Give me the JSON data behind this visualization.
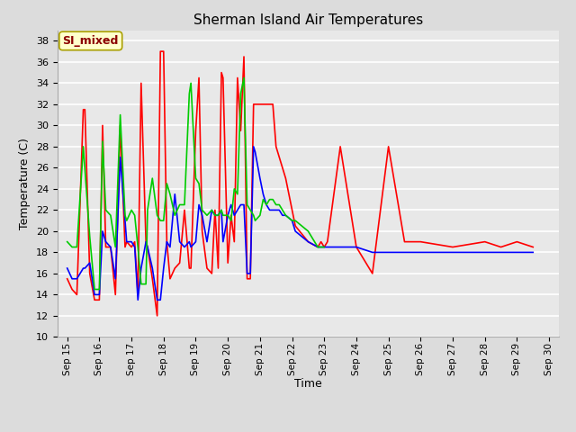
{
  "title": "Sherman Island Air Temperatures",
  "xlabel": "Time",
  "ylabel": "Temperature (C)",
  "background_color": "#dcdcdc",
  "plot_bg_color": "#dcdcdc",
  "plot_area_color": "#e8e8e8",
  "ylim": [
    10,
    39
  ],
  "yticks": [
    10,
    12,
    14,
    16,
    18,
    20,
    22,
    24,
    26,
    28,
    30,
    32,
    34,
    36,
    38
  ],
  "annotation_text": "SI_mixed",
  "annotation_color": "#8b0000",
  "annotation_bg": "#ffffcc",
  "annotation_edge": "#aaa000",
  "series": {
    "Panel T": {
      "color": "#ff0000",
      "x": [
        0.0,
        0.15,
        0.3,
        0.5,
        0.55,
        0.7,
        0.85,
        1.0,
        1.1,
        1.2,
        1.35,
        1.5,
        1.65,
        1.8,
        1.85,
        2.0,
        2.1,
        2.2,
        2.3,
        2.45,
        2.5,
        2.65,
        2.8,
        2.9,
        3.0,
        3.1,
        3.2,
        3.35,
        3.5,
        3.65,
        3.8,
        3.85,
        4.0,
        4.1,
        4.2,
        4.35,
        4.5,
        4.6,
        4.7,
        4.8,
        4.85,
        5.0,
        5.1,
        5.2,
        5.3,
        5.4,
        5.5,
        5.6,
        5.7,
        5.8,
        5.85,
        6.0,
        6.1,
        6.2,
        6.3,
        6.4,
        6.5,
        6.6,
        6.7,
        6.8,
        7.0,
        7.1,
        7.5,
        7.8,
        7.9,
        8.0,
        8.1,
        8.5,
        9.0,
        9.5,
        10.0,
        10.5,
        11.0,
        12.0,
        13.0,
        13.5,
        14.0,
        14.5
      ],
      "y": [
        15.5,
        14.5,
        14.0,
        31.5,
        31.5,
        16.0,
        13.5,
        13.5,
        30.0,
        18.5,
        18.5,
        14.0,
        30.0,
        18.5,
        19.0,
        18.5,
        19.0,
        14.0,
        34.0,
        19.0,
        18.5,
        15.5,
        12.0,
        37.0,
        37.0,
        19.0,
        15.5,
        16.5,
        17.0,
        22.0,
        16.5,
        16.5,
        29.5,
        34.5,
        20.0,
        16.5,
        16.0,
        22.0,
        16.5,
        35.0,
        34.5,
        17.0,
        21.5,
        19.0,
        34.5,
        29.5,
        36.5,
        15.5,
        15.5,
        32.0,
        32.0,
        32.0,
        32.0,
        32.0,
        32.0,
        32.0,
        28.0,
        27.0,
        26.0,
        25.0,
        22.0,
        20.5,
        19.0,
        18.5,
        19.0,
        18.5,
        19.0,
        28.0,
        18.5,
        16.0,
        28.0,
        19.0,
        19.0,
        18.5,
        19.0,
        18.5,
        19.0,
        18.5
      ]
    },
    "Air T": {
      "color": "#0000ff",
      "x": [
        0.0,
        0.15,
        0.3,
        0.5,
        0.55,
        0.7,
        0.85,
        1.0,
        1.1,
        1.2,
        1.35,
        1.5,
        1.65,
        1.8,
        1.85,
        2.0,
        2.1,
        2.2,
        2.3,
        2.45,
        2.5,
        2.65,
        2.8,
        2.9,
        3.0,
        3.1,
        3.2,
        3.35,
        3.5,
        3.65,
        3.8,
        3.85,
        4.0,
        4.1,
        4.2,
        4.35,
        4.5,
        4.6,
        4.7,
        4.8,
        4.85,
        5.0,
        5.1,
        5.2,
        5.3,
        5.4,
        5.5,
        5.6,
        5.7,
        5.8,
        5.85,
        6.0,
        6.1,
        6.2,
        6.3,
        6.4,
        6.5,
        6.6,
        6.7,
        6.8,
        7.0,
        7.1,
        7.5,
        7.8,
        7.9,
        8.0,
        8.1,
        8.5,
        9.0,
        9.5,
        10.0,
        10.5,
        11.0,
        12.0,
        13.0,
        13.5,
        14.0,
        14.5
      ],
      "y": [
        16.5,
        15.5,
        15.5,
        16.5,
        16.5,
        17.0,
        14.0,
        14.0,
        20.0,
        19.0,
        18.5,
        15.5,
        27.0,
        21.0,
        19.0,
        19.0,
        18.5,
        13.5,
        16.5,
        19.0,
        18.5,
        16.5,
        13.5,
        13.5,
        16.5,
        19.0,
        18.5,
        23.5,
        19.0,
        18.5,
        19.0,
        18.5,
        19.0,
        22.5,
        21.5,
        19.0,
        22.0,
        21.5,
        21.5,
        22.0,
        19.0,
        21.5,
        22.5,
        21.5,
        22.0,
        22.5,
        22.5,
        16.0,
        16.0,
        28.0,
        27.5,
        25.0,
        23.5,
        22.5,
        22.0,
        22.0,
        22.0,
        22.0,
        21.5,
        21.5,
        21.0,
        20.0,
        19.0,
        18.5,
        18.5,
        18.5,
        18.5,
        18.5,
        18.5,
        18.0,
        18.0,
        18.0,
        18.0,
        18.0,
        18.0,
        18.0,
        18.0,
        18.0
      ]
    },
    "Sonic T": {
      "color": "#00cc00",
      "x": [
        0.0,
        0.15,
        0.3,
        0.5,
        0.7,
        0.85,
        1.0,
        1.1,
        1.2,
        1.35,
        1.5,
        1.65,
        1.8,
        1.85,
        2.0,
        2.1,
        2.2,
        2.3,
        2.45,
        2.5,
        2.65,
        2.8,
        2.9,
        3.0,
        3.1,
        3.2,
        3.35,
        3.5,
        3.65,
        3.8,
        3.85,
        4.0,
        4.1,
        4.2,
        4.35,
        4.5,
        4.6,
        4.7,
        4.8,
        4.85,
        5.0,
        5.1,
        5.2,
        5.3,
        5.4,
        5.5,
        5.6,
        5.7,
        5.8,
        5.85,
        6.0,
        6.1,
        6.2,
        6.3,
        6.4,
        6.5,
        6.6,
        6.7,
        6.8,
        7.0,
        7.1,
        7.5,
        7.8,
        7.9,
        8.0
      ],
      "y": [
        19.0,
        18.5,
        18.5,
        28.0,
        19.5,
        14.5,
        14.5,
        28.5,
        22.0,
        21.5,
        18.5,
        31.0,
        21.5,
        21.0,
        22.0,
        21.5,
        18.5,
        15.0,
        15.0,
        22.0,
        25.0,
        21.5,
        21.0,
        21.0,
        24.5,
        23.5,
        21.5,
        22.5,
        22.5,
        33.0,
        34.0,
        25.0,
        24.5,
        22.0,
        21.5,
        22.0,
        21.5,
        21.5,
        22.0,
        21.5,
        21.5,
        21.0,
        24.0,
        23.5,
        33.0,
        34.5,
        22.5,
        22.0,
        21.5,
        21.0,
        21.5,
        23.0,
        22.5,
        23.0,
        23.0,
        22.5,
        22.5,
        22.0,
        21.5,
        21.0,
        21.0,
        20.0,
        18.5,
        18.5,
        18.5
      ]
    }
  },
  "xtick_labels": [
    "Sep 15",
    "Sep 16",
    "Sep 17",
    "Sep 18",
    "Sep 19",
    "Sep 20",
    "Sep 21",
    "Sep 22",
    "Sep 23",
    "Sep 24",
    "Sep 25",
    "Sep 26",
    "Sep 27",
    "Sep 28",
    "Sep 29",
    "Sep 30"
  ],
  "xtick_positions": [
    0,
    1,
    2,
    3,
    4,
    5,
    6,
    7,
    8,
    9,
    10,
    11,
    12,
    13,
    14,
    15
  ]
}
